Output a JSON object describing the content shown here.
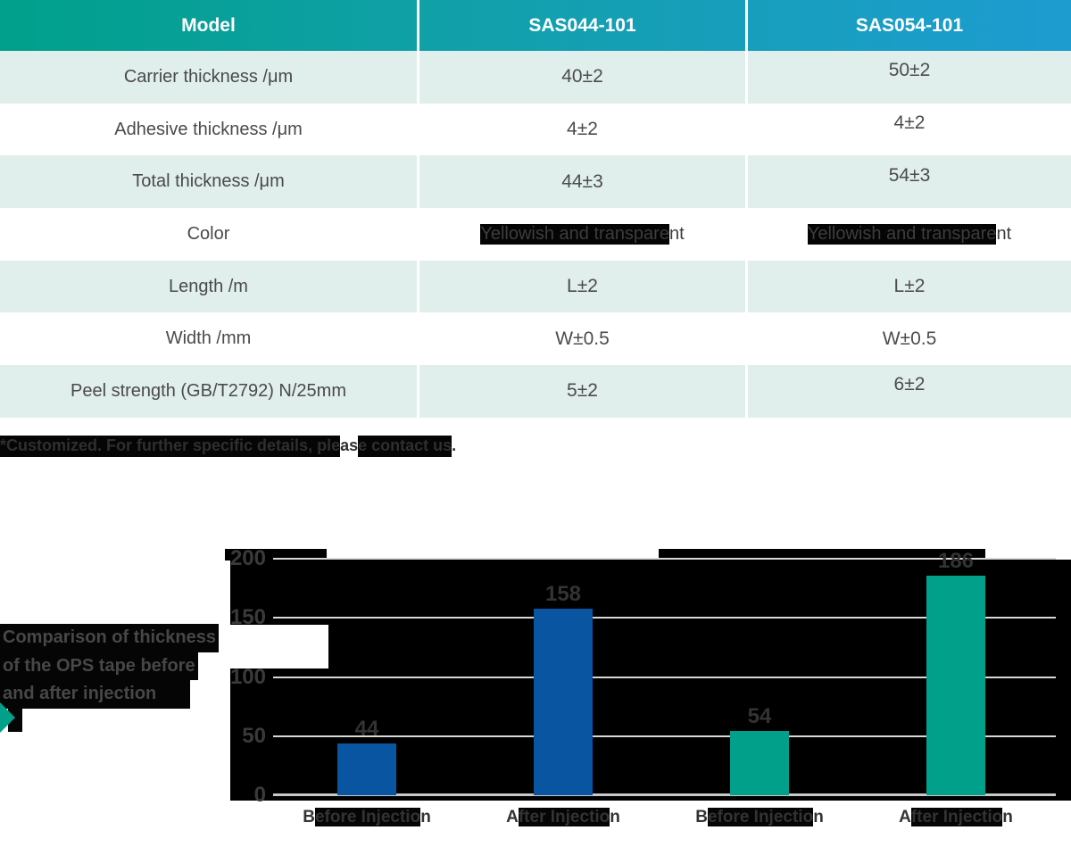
{
  "table": {
    "columns": [
      "Model",
      "SAS044-101",
      "SAS054-101"
    ],
    "rows": [
      {
        "label": "Carrier thickness /μm",
        "v1": "40±2",
        "v2": "50±2"
      },
      {
        "label": "Adhesive thickness /μm",
        "v1": "4±2",
        "v2": "4±2"
      },
      {
        "label": "Total thickness /μm",
        "v1": "44±3",
        "v2": "54±3"
      },
      {
        "label": "Color",
        "v1": "Yellowish and transparent",
        "v1_hl": "Yellowish and transpare",
        "v1_tail": "nt",
        "v2": "Yellowish and transparent",
        "v2_hl": "Yellowish and transpare",
        "v2_tail": "nt"
      },
      {
        "label": "Length /m",
        "v1": "L±2",
        "v2": "L±2"
      },
      {
        "label": "Width /mm",
        "v1": "W±0.5",
        "v2": "W±0.5"
      },
      {
        "label": "Peel strength (GB/T2792) N/25mm",
        "v1": "5±2",
        "v2": "6±2"
      }
    ]
  },
  "footnote": {
    "text": "*Customized. For further specific details, please contact us.",
    "p1": "*Customized. For further specific details, ple",
    "p2": "as",
    "p3": "e contact us",
    "p4": "."
  },
  "chart_data": {
    "type": "bar",
    "title": "Comparison of thickness of the OPS tape before and after injection",
    "title_lines": [
      "Comparison of thickness",
      "of the OPS tape before",
      "and after injection"
    ],
    "categories": [
      "Before Injection",
      "After Injection",
      "Before Injection",
      "After Injection"
    ],
    "values": [
      44,
      158,
      54,
      186
    ],
    "bar_colors": [
      "#0955a2",
      "#0955a2",
      "#00a08a",
      "#00a08a"
    ],
    "value_labels": [
      "44",
      "158",
      "54",
      "186"
    ],
    "ylim": [
      0,
      200
    ],
    "yticks": [
      0,
      50,
      100,
      150,
      200
    ],
    "grid": true,
    "legend_position": "none",
    "xlabel": "",
    "ylabel": ""
  },
  "theme": {
    "header_gradient_left": "#00a08b",
    "header_gradient_right": "#1d9cd1",
    "row_tint": "#e0efeb",
    "bar_blue": "#0955a2",
    "bar_teal": "#00a08a",
    "grid_color": "#d8d8d8"
  }
}
